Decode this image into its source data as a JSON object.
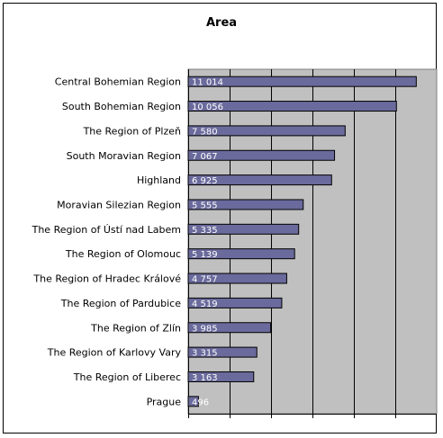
{
  "chart_data": {
    "type": "bar",
    "orientation": "horizontal",
    "title": "Area",
    "categories": [
      "Central Bohemian Region",
      "South Bohemian Region",
      "The Region of Plzeň",
      "South Moravian Region",
      "Highland",
      "Moravian Silezian Region",
      "The Region of Ústí nad Labem",
      "The Region of Olomouc",
      "The Region of Hradec Králové",
      "The Region of Pardubice",
      "The Region of Zlín",
      "The Region of Karlovy Vary",
      "The Region of Liberec",
      "Prague"
    ],
    "values": [
      11014,
      10056,
      7580,
      7067,
      6925,
      5555,
      5335,
      5139,
      4757,
      4519,
      3985,
      3315,
      3163,
      496
    ],
    "value_labels": [
      "11 014",
      "10 056",
      "7 580",
      "7 067",
      "6 925",
      "5 555",
      "5 335",
      "5 139",
      "4 757",
      "4 519",
      "3 985",
      "3 315",
      "3 163",
      "496"
    ],
    "xlim": [
      0,
      12000
    ],
    "x_tick_step": 2000,
    "grid": true,
    "legend": "none",
    "colors": {
      "bar_fill": "#6a6a9c",
      "bar_stroke": "#000000",
      "plot_background": "#c0c0c0",
      "gridline": "#000000",
      "value_text": "#ffffff"
    }
  }
}
